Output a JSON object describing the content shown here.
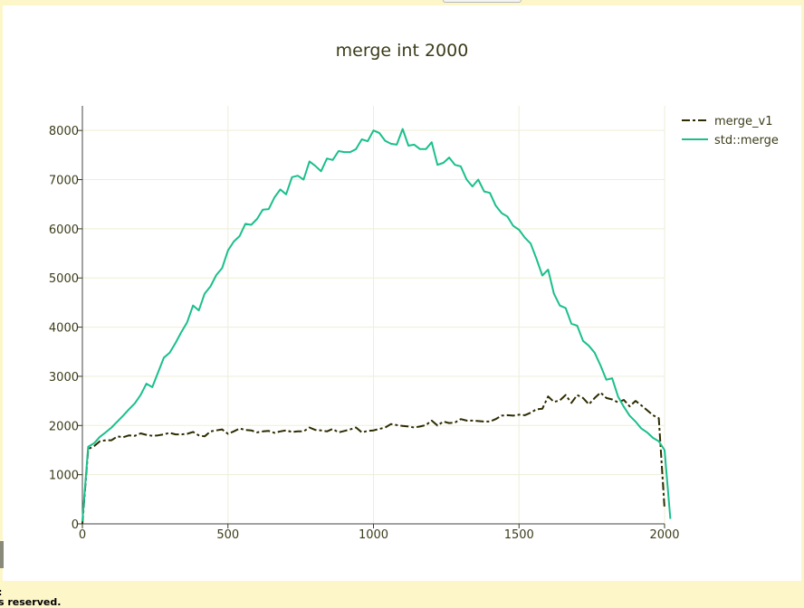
{
  "footer": {
    "line1": ":",
    "line2": "s reserved."
  },
  "colors": {
    "background": "#fdf6c8",
    "plot_bg": "#ffffff",
    "grid": "#eeeed8",
    "axis_text": "#3c3c1a",
    "merge_v1": "#2e2c00",
    "std_merge": "#1abf8c"
  },
  "chart_data": {
    "type": "line",
    "title": "merge int 2000",
    "xlabel": "",
    "ylabel": "",
    "xlim": [
      0,
      2000
    ],
    "ylim": [
      0,
      8500
    ],
    "xticks": [
      0,
      500,
      1000,
      1500,
      2000
    ],
    "yticks": [
      0,
      1000,
      2000,
      3000,
      4000,
      5000,
      6000,
      7000,
      8000
    ],
    "grid": true,
    "legend_position": "top-right",
    "series": [
      {
        "name": "merge_v1",
        "style": "dashdot",
        "points": [
          [
            0,
            0
          ],
          [
            20,
            1520
          ],
          [
            40,
            1580
          ],
          [
            60,
            1680
          ],
          [
            80,
            1700
          ],
          [
            100,
            1700
          ],
          [
            120,
            1780
          ],
          [
            140,
            1760
          ],
          [
            160,
            1800
          ],
          [
            180,
            1790
          ],
          [
            200,
            1840
          ],
          [
            220,
            1810
          ],
          [
            240,
            1790
          ],
          [
            260,
            1800
          ],
          [
            280,
            1820
          ],
          [
            300,
            1850
          ],
          [
            320,
            1820
          ],
          [
            340,
            1820
          ],
          [
            360,
            1830
          ],
          [
            380,
            1870
          ],
          [
            400,
            1800
          ],
          [
            420,
            1780
          ],
          [
            440,
            1880
          ],
          [
            460,
            1900
          ],
          [
            480,
            1920
          ],
          [
            500,
            1830
          ],
          [
            520,
            1880
          ],
          [
            540,
            1940
          ],
          [
            560,
            1910
          ],
          [
            580,
            1900
          ],
          [
            600,
            1860
          ],
          [
            620,
            1880
          ],
          [
            640,
            1890
          ],
          [
            660,
            1850
          ],
          [
            680,
            1880
          ],
          [
            700,
            1900
          ],
          [
            720,
            1870
          ],
          [
            740,
            1880
          ],
          [
            760,
            1880
          ],
          [
            780,
            1960
          ],
          [
            800,
            1910
          ],
          [
            820,
            1900
          ],
          [
            840,
            1880
          ],
          [
            860,
            1930
          ],
          [
            880,
            1860
          ],
          [
            900,
            1890
          ],
          [
            920,
            1920
          ],
          [
            940,
            1960
          ],
          [
            960,
            1860
          ],
          [
            980,
            1890
          ],
          [
            1000,
            1900
          ],
          [
            1020,
            1930
          ],
          [
            1040,
            1960
          ],
          [
            1060,
            2030
          ],
          [
            1080,
            2010
          ],
          [
            1100,
            1990
          ],
          [
            1120,
            1980
          ],
          [
            1140,
            1960
          ],
          [
            1160,
            1980
          ],
          [
            1180,
            2010
          ],
          [
            1200,
            2100
          ],
          [
            1220,
            2000
          ],
          [
            1240,
            2080
          ],
          [
            1260,
            2050
          ],
          [
            1280,
            2060
          ],
          [
            1300,
            2130
          ],
          [
            1320,
            2100
          ],
          [
            1340,
            2100
          ],
          [
            1360,
            2090
          ],
          [
            1380,
            2080
          ],
          [
            1400,
            2080
          ],
          [
            1420,
            2130
          ],
          [
            1440,
            2200
          ],
          [
            1460,
            2210
          ],
          [
            1480,
            2200
          ],
          [
            1500,
            2220
          ],
          [
            1520,
            2210
          ],
          [
            1540,
            2260
          ],
          [
            1560,
            2330
          ],
          [
            1580,
            2340
          ],
          [
            1600,
            2590
          ],
          [
            1620,
            2480
          ],
          [
            1640,
            2510
          ],
          [
            1660,
            2620
          ],
          [
            1680,
            2460
          ],
          [
            1700,
            2620
          ],
          [
            1720,
            2560
          ],
          [
            1740,
            2430
          ],
          [
            1760,
            2560
          ],
          [
            1780,
            2670
          ],
          [
            1800,
            2560
          ],
          [
            1820,
            2530
          ],
          [
            1840,
            2470
          ],
          [
            1860,
            2520
          ],
          [
            1880,
            2390
          ],
          [
            1900,
            2500
          ],
          [
            1920,
            2410
          ],
          [
            1940,
            2310
          ],
          [
            1960,
            2210
          ],
          [
            1980,
            2150
          ],
          [
            2000,
            300
          ]
        ]
      },
      {
        "name": "std::merge",
        "style": "solid",
        "points": [
          [
            0,
            50
          ],
          [
            20,
            1570
          ],
          [
            40,
            1640
          ],
          [
            60,
            1770
          ],
          [
            80,
            1860
          ],
          [
            100,
            1960
          ],
          [
            120,
            2080
          ],
          [
            140,
            2200
          ],
          [
            160,
            2330
          ],
          [
            180,
            2450
          ],
          [
            200,
            2620
          ],
          [
            220,
            2850
          ],
          [
            240,
            2780
          ],
          [
            260,
            3080
          ],
          [
            280,
            3380
          ],
          [
            300,
            3480
          ],
          [
            320,
            3680
          ],
          [
            340,
            3900
          ],
          [
            360,
            4100
          ],
          [
            380,
            4440
          ],
          [
            400,
            4340
          ],
          [
            420,
            4680
          ],
          [
            440,
            4830
          ],
          [
            460,
            5060
          ],
          [
            480,
            5200
          ],
          [
            500,
            5560
          ],
          [
            520,
            5740
          ],
          [
            540,
            5850
          ],
          [
            560,
            6100
          ],
          [
            580,
            6080
          ],
          [
            600,
            6200
          ],
          [
            620,
            6390
          ],
          [
            640,
            6400
          ],
          [
            660,
            6640
          ],
          [
            680,
            6800
          ],
          [
            700,
            6700
          ],
          [
            720,
            7050
          ],
          [
            740,
            7080
          ],
          [
            760,
            7000
          ],
          [
            780,
            7370
          ],
          [
            800,
            7280
          ],
          [
            820,
            7170
          ],
          [
            840,
            7430
          ],
          [
            860,
            7400
          ],
          [
            880,
            7580
          ],
          [
            900,
            7560
          ],
          [
            920,
            7560
          ],
          [
            940,
            7620
          ],
          [
            960,
            7820
          ],
          [
            980,
            7780
          ],
          [
            1000,
            8000
          ],
          [
            1020,
            7950
          ],
          [
            1040,
            7790
          ],
          [
            1060,
            7730
          ],
          [
            1080,
            7710
          ],
          [
            1100,
            8030
          ],
          [
            1120,
            7690
          ],
          [
            1140,
            7710
          ],
          [
            1160,
            7620
          ],
          [
            1180,
            7620
          ],
          [
            1200,
            7760
          ],
          [
            1220,
            7300
          ],
          [
            1240,
            7340
          ],
          [
            1260,
            7450
          ],
          [
            1280,
            7300
          ],
          [
            1300,
            7270
          ],
          [
            1320,
            7000
          ],
          [
            1340,
            6860
          ],
          [
            1360,
            7000
          ],
          [
            1380,
            6760
          ],
          [
            1400,
            6730
          ],
          [
            1420,
            6470
          ],
          [
            1440,
            6320
          ],
          [
            1460,
            6250
          ],
          [
            1480,
            6060
          ],
          [
            1500,
            5980
          ],
          [
            1520,
            5820
          ],
          [
            1540,
            5700
          ],
          [
            1560,
            5390
          ],
          [
            1580,
            5050
          ],
          [
            1600,
            5170
          ],
          [
            1620,
            4680
          ],
          [
            1640,
            4440
          ],
          [
            1660,
            4390
          ],
          [
            1680,
            4070
          ],
          [
            1700,
            4030
          ],
          [
            1720,
            3720
          ],
          [
            1740,
            3620
          ],
          [
            1760,
            3480
          ],
          [
            1780,
            3220
          ],
          [
            1800,
            2930
          ],
          [
            1820,
            2960
          ],
          [
            1840,
            2590
          ],
          [
            1860,
            2380
          ],
          [
            1880,
            2200
          ],
          [
            1900,
            2080
          ],
          [
            1920,
            1940
          ],
          [
            1940,
            1860
          ],
          [
            1960,
            1750
          ],
          [
            1980,
            1680
          ],
          [
            2000,
            1500
          ],
          [
            2020,
            100
          ]
        ]
      }
    ]
  }
}
